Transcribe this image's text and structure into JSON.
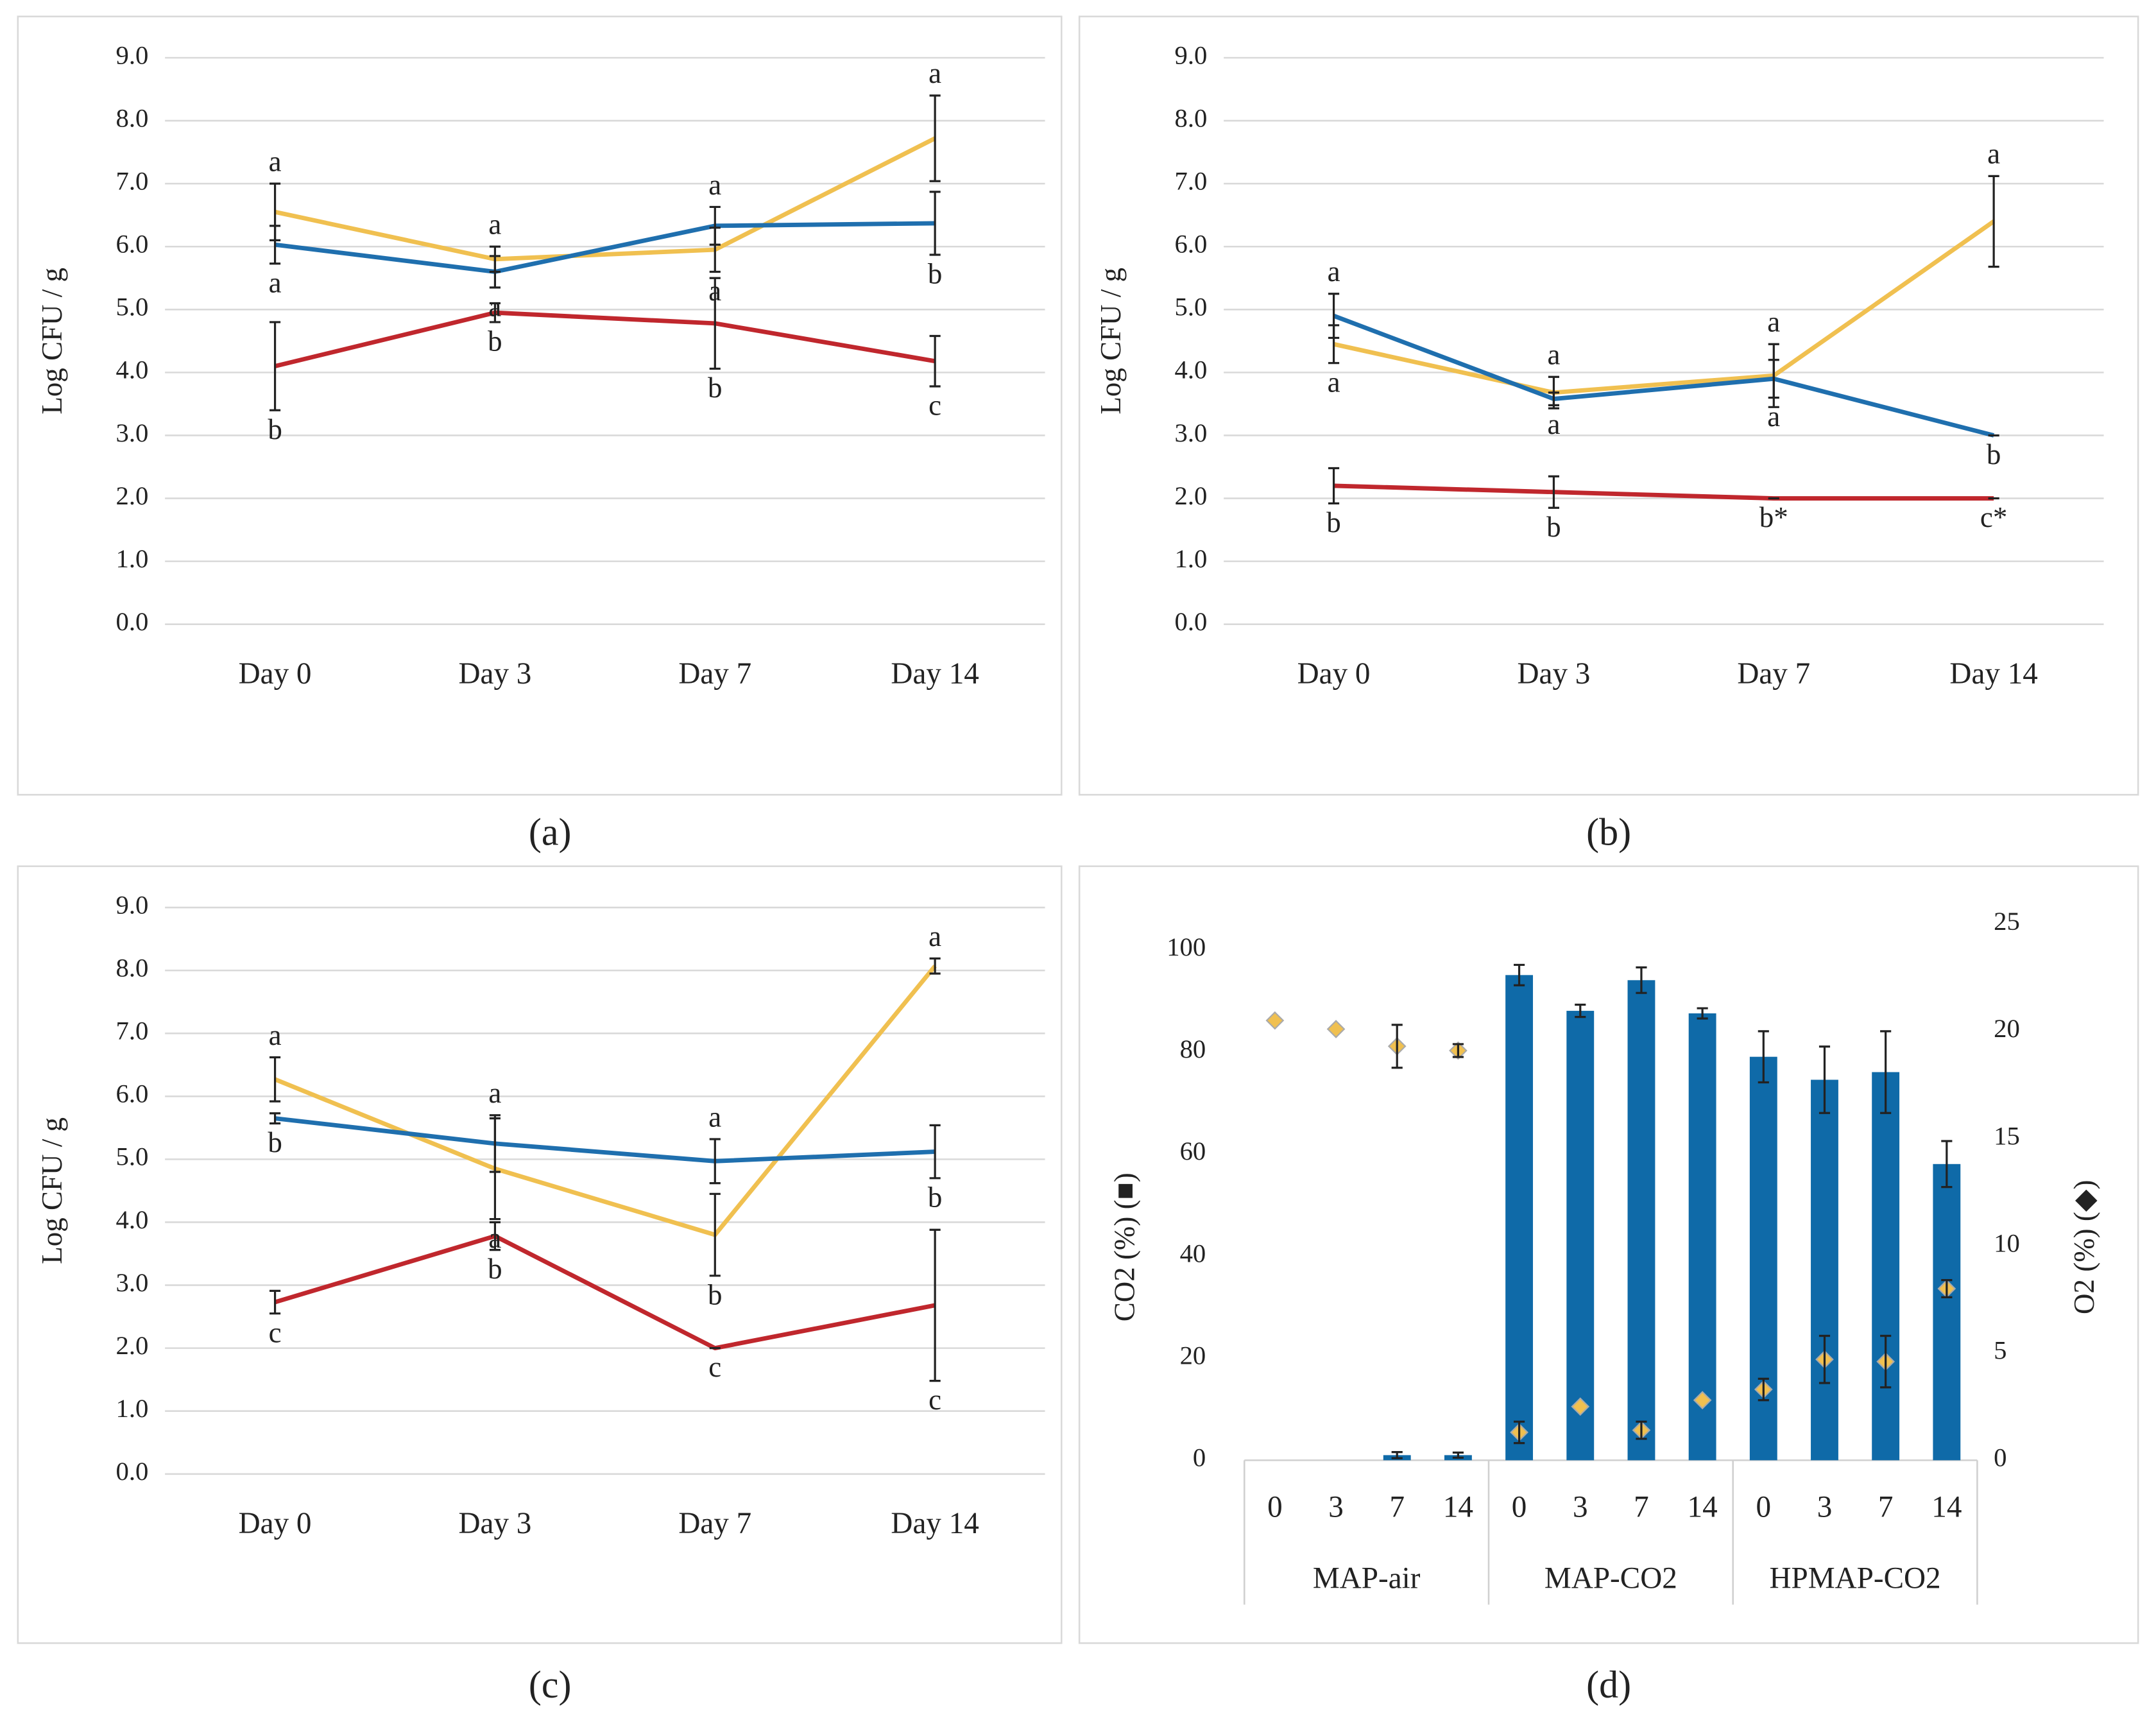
{
  "chart_data": [
    {
      "type": "line",
      "caption": "(a)",
      "ylabel": "Log CFU / g",
      "categories": [
        "Day 0",
        "Day 3",
        "Day 7",
        "Day 14"
      ],
      "ylim": [
        0,
        9
      ],
      "yticks": [
        {
          "value": 0,
          "label": "0.0"
        },
        {
          "value": 1,
          "label": "1.0"
        },
        {
          "value": 2,
          "label": "2.0"
        },
        {
          "value": 3,
          "label": "3.0"
        },
        {
          "value": 4,
          "label": "4.0"
        },
        {
          "value": 5,
          "label": "5.0"
        },
        {
          "value": 6,
          "label": "6.0"
        },
        {
          "value": 7,
          "label": "7.0"
        },
        {
          "value": 8,
          "label": "8.0"
        },
        {
          "value": 9,
          "label": "9.0"
        }
      ],
      "grid": true,
      "series": [
        {
          "color": "#f0c050",
          "values": [
            6.55,
            5.8,
            5.95,
            7.72
          ],
          "errors": [
            0.45,
            0.2,
            0.35,
            0.68
          ],
          "letters": [
            "a",
            "a",
            "a",
            "a"
          ]
        },
        {
          "color": "#1f6fae",
          "values": [
            6.03,
            5.6,
            6.33,
            6.37
          ],
          "errors": [
            0.3,
            0.25,
            0.3,
            0.5
          ],
          "letters": [
            "a",
            "a",
            "a",
            "b"
          ]
        },
        {
          "color": "#c0272d",
          "values": [
            4.1,
            4.95,
            4.78,
            4.18
          ],
          "errors": [
            0.7,
            0.15,
            0.72,
            0.4
          ],
          "letters": [
            "b",
            "b",
            "b",
            "c"
          ]
        }
      ]
    },
    {
      "type": "line",
      "caption": "(b)",
      "ylabel": "Log CFU / g",
      "categories": [
        "Day 0",
        "Day 3",
        "Day 7",
        "Day 14"
      ],
      "ylim": [
        0,
        9
      ],
      "yticks": [
        {
          "value": 0,
          "label": "0.0"
        },
        {
          "value": 1,
          "label": "1.0"
        },
        {
          "value": 2,
          "label": "2.0"
        },
        {
          "value": 3,
          "label": "3.0"
        },
        {
          "value": 4,
          "label": "4.0"
        },
        {
          "value": 5,
          "label": "5.0"
        },
        {
          "value": 6,
          "label": "6.0"
        },
        {
          "value": 7,
          "label": "7.0"
        },
        {
          "value": 8,
          "label": "8.0"
        },
        {
          "value": 9,
          "label": "9.0"
        }
      ],
      "grid": true,
      "series": [
        {
          "color": "#f0c050",
          "values": [
            4.45,
            3.68,
            3.95,
            6.4
          ],
          "errors": [
            0.3,
            0.25,
            0.5,
            0.72
          ],
          "letters": [
            "a",
            "a",
            "a",
            "a"
          ]
        },
        {
          "color": "#1f6fae",
          "values": [
            4.9,
            3.58,
            3.9,
            3.0
          ],
          "errors": [
            0.35,
            0.1,
            0.3,
            0
          ],
          "letters": [
            "a",
            "a",
            "a",
            "b"
          ]
        },
        {
          "color": "#c0272d",
          "values": [
            2.2,
            2.1,
            2.0,
            2.0
          ],
          "errors": [
            0.28,
            0.25,
            0,
            0
          ],
          "letters": [
            "b",
            "b",
            "b*",
            "c*"
          ]
        }
      ]
    },
    {
      "type": "line",
      "caption": "(c)",
      "ylabel": "Log CFU / g",
      "categories": [
        "Day 0",
        "Day 3",
        "Day 7",
        "Day 14"
      ],
      "ylim": [
        0,
        9
      ],
      "yticks": [
        {
          "value": 0,
          "label": "0.0"
        },
        {
          "value": 1,
          "label": "1.0"
        },
        {
          "value": 2,
          "label": "2.0"
        },
        {
          "value": 3,
          "label": "3.0"
        },
        {
          "value": 4,
          "label": "4.0"
        },
        {
          "value": 5,
          "label": "5.0"
        },
        {
          "value": 6,
          "label": "6.0"
        },
        {
          "value": 7,
          "label": "7.0"
        },
        {
          "value": 8,
          "label": "8.0"
        },
        {
          "value": 9,
          "label": "9.0"
        }
      ],
      "grid": true,
      "series": [
        {
          "color": "#f0c050",
          "values": [
            6.27,
            4.85,
            3.8,
            8.07
          ],
          "errors": [
            0.35,
            0.8,
            0.65,
            0.12
          ],
          "letters": [
            "a",
            "a",
            "b",
            "a"
          ]
        },
        {
          "color": "#1f6fae",
          "values": [
            5.65,
            5.25,
            4.97,
            5.12
          ],
          "errors": [
            0.08,
            0.45,
            0.35,
            0.42
          ],
          "letters": [
            "b",
            "a",
            "a",
            "b"
          ]
        },
        {
          "color": "#c0272d",
          "values": [
            2.73,
            3.78,
            2.0,
            2.68
          ],
          "errors": [
            0.18,
            0.22,
            0,
            1.2
          ],
          "letters": [
            "c",
            "b",
            "c",
            "c"
          ]
        }
      ]
    },
    {
      "type": "bar",
      "caption": "(d)",
      "ylabel": "CO2 (%) (■)",
      "y2label": "O2 (%) (◆)",
      "categories": [
        "0",
        "3",
        "7",
        "14",
        "0",
        "3",
        "7",
        "14",
        "0",
        "3",
        "7",
        "14"
      ],
      "group_labels": [
        "MAP-air",
        "MAP-CO2",
        "HPMAP-CO2"
      ],
      "ylim": [
        0,
        105
      ],
      "yticks": [
        0,
        20,
        40,
        60,
        80,
        100
      ],
      "y2lim": [
        0,
        25
      ],
      "y2ticks": [
        0,
        5,
        10,
        15,
        20,
        25
      ],
      "grid": false,
      "series": [
        {
          "color": "#0f6aa8",
          "values": [
            0,
            0,
            1,
            1,
            95,
            88,
            94,
            87.5,
            79,
            74.5,
            76,
            58
          ],
          "errors": [
            0,
            0,
            0.6,
            0.5,
            2,
            1.2,
            2.5,
            1,
            5,
            6.5,
            8,
            4.5
          ]
        },
        {
          "axis": "y2",
          "color": "#f0c050",
          "values": [
            20.5,
            20.1,
            19.3,
            19.1,
            1.3,
            2.5,
            1.4,
            2.8,
            3.3,
            4.7,
            4.6,
            8
          ],
          "errors": [
            0,
            0,
            1,
            0.3,
            0.5,
            0,
            0.4,
            0,
            0.5,
            1.1,
            1.2,
            0.4
          ]
        }
      ]
    }
  ]
}
